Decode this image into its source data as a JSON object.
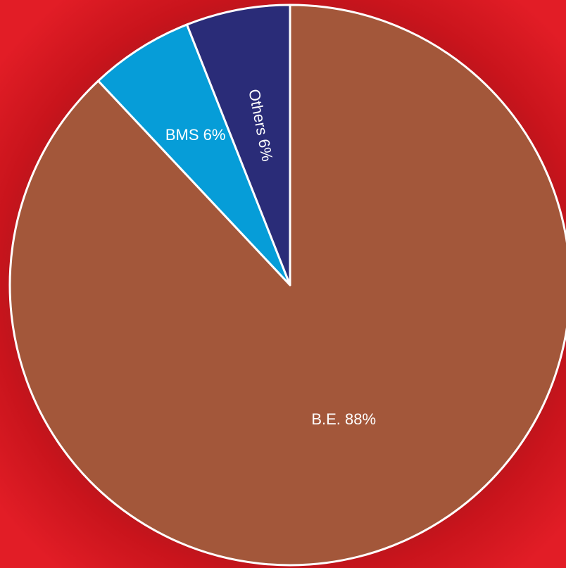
{
  "chart_data": {
    "type": "pie",
    "title": "",
    "slices": [
      {
        "label": "B.E. 88%",
        "name": "B.E.",
        "value": 88,
        "color": "#a3573a"
      },
      {
        "label": "BMS 6%",
        "name": "BMS",
        "value": 6,
        "color": "#069dd8"
      },
      {
        "label": "Others 6%",
        "name": "Others",
        "value": 6,
        "color": "#2a2c78"
      }
    ],
    "start_angle_deg": 0,
    "direction": "clockwise",
    "background_color": "#e21d26",
    "edge_color": "#ffffff"
  }
}
